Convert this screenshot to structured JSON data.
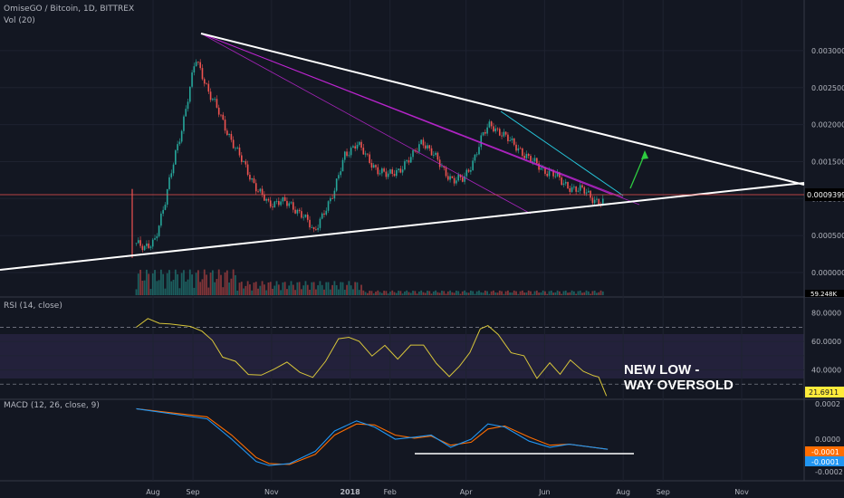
{
  "header": {
    "title": "OmiseGO / Bitcoin, 1D, BITTREX",
    "volume_label": "Vol (20)"
  },
  "price_pane": {
    "axis_ticks": [
      "0.00300000",
      "0.00250000",
      "0.00200000",
      "0.00150000",
      "0.00100000",
      "0.00050000",
      "0.00000000"
    ],
    "last_price": "0.00093998",
    "volume_badge": "59.248K",
    "last_price_color": "#f23645"
  },
  "rsi_pane": {
    "label": "RSI (14, close)",
    "axis_ticks": [
      "80.0000",
      "60.0000",
      "40.0000"
    ],
    "value": "21.6911",
    "annotation_line1": "NEW LOW  -",
    "annotation_line2": "WAY OVERSOLD"
  },
  "macd_pane": {
    "label": "MACD (12, 26, close, 9)",
    "axis_ticks": [
      "0.0002",
      "0.0000",
      "-0.0002"
    ],
    "signal_value": "-0.0001",
    "macd_value": "-0.0001"
  },
  "time_axis": [
    "Aug",
    "Sep",
    "Nov",
    "2018",
    "Feb",
    "Apr",
    "Jun",
    "Aug",
    "Sep",
    "Nov"
  ],
  "colors": {
    "background": "#131722",
    "up": "#26a69a",
    "down": "#ef5350",
    "trendline": "#ffffff",
    "fan": "#c026d3",
    "rsi": "#d8c63a",
    "rsi_band": "#7e57c2",
    "macd": "#2196f3",
    "signal": "#ff6d00",
    "arrow": "#2ecc40",
    "wedge_top": "#26c6da"
  },
  "chart_data": {
    "type": "candlestick",
    "symbol": "OmiseGO / Bitcoin, 1D, BITTREX",
    "ylim": [
      0,
      0.0032
    ],
    "price_path": [
      [
        "2017-07-19",
        0.0004
      ],
      [
        "2017-07-25",
        0.0003
      ],
      [
        "2017-08-02",
        0.00045
      ],
      [
        "2017-08-10",
        0.0009
      ],
      [
        "2017-08-18",
        0.0016
      ],
      [
        "2017-08-24",
        0.002
      ],
      [
        "2017-08-30",
        0.0025
      ],
      [
        "2017-09-03",
        0.0029
      ],
      [
        "2017-09-08",
        0.0027
      ],
      [
        "2017-09-14",
        0.0024
      ],
      [
        "2017-09-20",
        0.0022
      ],
      [
        "2017-09-28",
        0.0019
      ],
      [
        "2017-10-06",
        0.0016
      ],
      [
        "2017-10-14",
        0.00135
      ],
      [
        "2017-10-22",
        0.0011
      ],
      [
        "2017-10-30",
        0.0009
      ],
      [
        "2017-11-08",
        0.001
      ],
      [
        "2017-11-18",
        0.00085
      ],
      [
        "2017-11-26",
        0.0008
      ],
      [
        "2017-12-02",
        0.0006
      ],
      [
        "2017-12-04",
        0.0005
      ],
      [
        "2017-12-12",
        0.00085
      ],
      [
        "2017-12-20",
        0.0011
      ],
      [
        "2017-12-28",
        0.0016
      ],
      [
        "2018-01-06",
        0.00175
      ],
      [
        "2018-01-14",
        0.00155
      ],
      [
        "2018-01-22",
        0.0014
      ],
      [
        "2018-01-30",
        0.0013
      ],
      [
        "2018-02-08",
        0.0014
      ],
      [
        "2018-02-18",
        0.00155
      ],
      [
        "2018-02-26",
        0.0018
      ],
      [
        "2018-03-06",
        0.0016
      ],
      [
        "2018-03-14",
        0.0014
      ],
      [
        "2018-03-22",
        0.00125
      ],
      [
        "2018-03-30",
        0.00125
      ],
      [
        "2018-04-06",
        0.0015
      ],
      [
        "2018-04-14",
        0.00185
      ],
      [
        "2018-04-20",
        0.002
      ],
      [
        "2018-04-28",
        0.0019
      ],
      [
        "2018-05-06",
        0.00175
      ],
      [
        "2018-05-14",
        0.00165
      ],
      [
        "2018-05-22",
        0.0015
      ],
      [
        "2018-05-30",
        0.0014
      ],
      [
        "2018-06-07",
        0.00135
      ],
      [
        "2018-06-15",
        0.0012
      ],
      [
        "2018-06-23",
        0.00115
      ],
      [
        "2018-07-01",
        0.0011
      ],
      [
        "2018-07-09",
        0.001
      ],
      [
        "2018-07-17",
        0.00094
      ]
    ],
    "last_price": 0.00093998,
    "trendlines": {
      "upper": [
        [
          "2017-09-03",
          0.00295
        ],
        [
          "2018-12-18",
          0.00106
        ]
      ],
      "lower": [
        [
          "2017-06-01",
          5e-05
        ],
        [
          "2018-12-28",
          0.00107
        ]
      ],
      "support": [
        "0.00093998"
      ]
    },
    "rsi": {
      "period": 14,
      "levels": [
        70,
        30
      ],
      "ylim": [
        20,
        90
      ],
      "values": [
        [
          "2017-07-19",
          70
        ],
        [
          "2017-07-28",
          76
        ],
        [
          "2017-08-06",
          73
        ],
        [
          "2017-08-14",
          72
        ],
        [
          "2017-08-22",
          72
        ],
        [
          "2017-08-30",
          70
        ],
        [
          "2017-09-08",
          68
        ],
        [
          "2017-09-16",
          60
        ],
        [
          "2017-09-24",
          50
        ],
        [
          "2017-10-04",
          45
        ],
        [
          "2017-10-14",
          38
        ],
        [
          "2017-10-24",
          35
        ],
        [
          "2017-11-03",
          42
        ],
        [
          "2017-11-13",
          44
        ],
        [
          "2017-11-23",
          40
        ],
        [
          "2017-12-03",
          33
        ],
        [
          "2017-12-13",
          48
        ],
        [
          "2017-12-23",
          60
        ],
        [
          "2017-12-31",
          65
        ],
        [
          "2018-01-08",
          58
        ],
        [
          "2018-01-18",
          52
        ],
        [
          "2018-01-28",
          55
        ],
        [
          "2018-02-07",
          50
        ],
        [
          "2018-02-17",
          55
        ],
        [
          "2018-02-27",
          60
        ],
        [
          "2018-03-09",
          42
        ],
        [
          "2018-03-19",
          38
        ],
        [
          "2018-03-27",
          40
        ],
        [
          "2018-04-04",
          55
        ],
        [
          "2018-04-12",
          66
        ],
        [
          "2018-04-18",
          74
        ],
        [
          "2018-04-26",
          62
        ],
        [
          "2018-05-06",
          55
        ],
        [
          "2018-05-16",
          47
        ],
        [
          "2018-05-26",
          37
        ],
        [
          "2018-06-05",
          42
        ],
        [
          "2018-06-13",
          40
        ],
        [
          "2018-06-21",
          44
        ],
        [
          "2018-07-01",
          42
        ],
        [
          "2018-07-09",
          33
        ],
        [
          "2018-07-13",
          38
        ],
        [
          "2018-07-19",
          21.69
        ]
      ]
    },
    "macd": {
      "params": "12, 26, close, 9",
      "ylim": [
        -0.00028,
        0.00026
      ],
      "macd_line": [
        [
          "2017-07-19",
          0.0003
        ],
        [
          "2017-09-12",
          0.0002
        ],
        [
          "2017-10-01",
          0.0
        ],
        [
          "2017-10-20",
          -0.00022
        ],
        [
          "2017-10-30",
          -0.00026
        ],
        [
          "2017-11-15",
          -0.00024
        ],
        [
          "2017-12-05",
          -0.00012
        ],
        [
          "2017-12-20",
          8e-05
        ],
        [
          "2018-01-06",
          0.00018
        ],
        [
          "2018-01-20",
          0.00012
        ],
        [
          "2018-02-05",
          0.0
        ],
        [
          "2018-02-20",
          2e-05
        ],
        [
          "2018-03-05",
          4e-05
        ],
        [
          "2018-03-20",
          -8e-05
        ],
        [
          "2018-04-05",
          0.0
        ],
        [
          "2018-04-18",
          0.00015
        ],
        [
          "2018-05-01",
          0.00012
        ],
        [
          "2018-05-20",
          -2e-05
        ],
        [
          "2018-06-05",
          -8e-05
        ],
        [
          "2018-06-20",
          -5e-05
        ],
        [
          "2018-07-20",
          -0.0001
        ]
      ],
      "signal_line": [
        [
          "2017-07-19",
          0.0003
        ],
        [
          "2017-09-12",
          0.00022
        ],
        [
          "2017-10-01",
          4e-05
        ],
        [
          "2017-10-20",
          -0.00018
        ],
        [
          "2017-10-30",
          -0.00024
        ],
        [
          "2017-11-15",
          -0.00025
        ],
        [
          "2017-12-05",
          -0.00015
        ],
        [
          "2017-12-20",
          4e-05
        ],
        [
          "2018-01-06",
          0.00015
        ],
        [
          "2018-01-20",
          0.00014
        ],
        [
          "2018-02-05",
          4e-05
        ],
        [
          "2018-02-20",
          1e-05
        ],
        [
          "2018-03-05",
          3e-05
        ],
        [
          "2018-03-20",
          -6e-05
        ],
        [
          "2018-04-05",
          -3e-05
        ],
        [
          "2018-04-18",
          0.0001
        ],
        [
          "2018-05-01",
          0.00013
        ],
        [
          "2018-05-20",
          2e-05
        ],
        [
          "2018-06-05",
          -6e-05
        ],
        [
          "2018-06-20",
          -5e-05
        ],
        [
          "2018-07-20",
          -0.0001
        ]
      ],
      "support_level": -0.0001
    }
  }
}
